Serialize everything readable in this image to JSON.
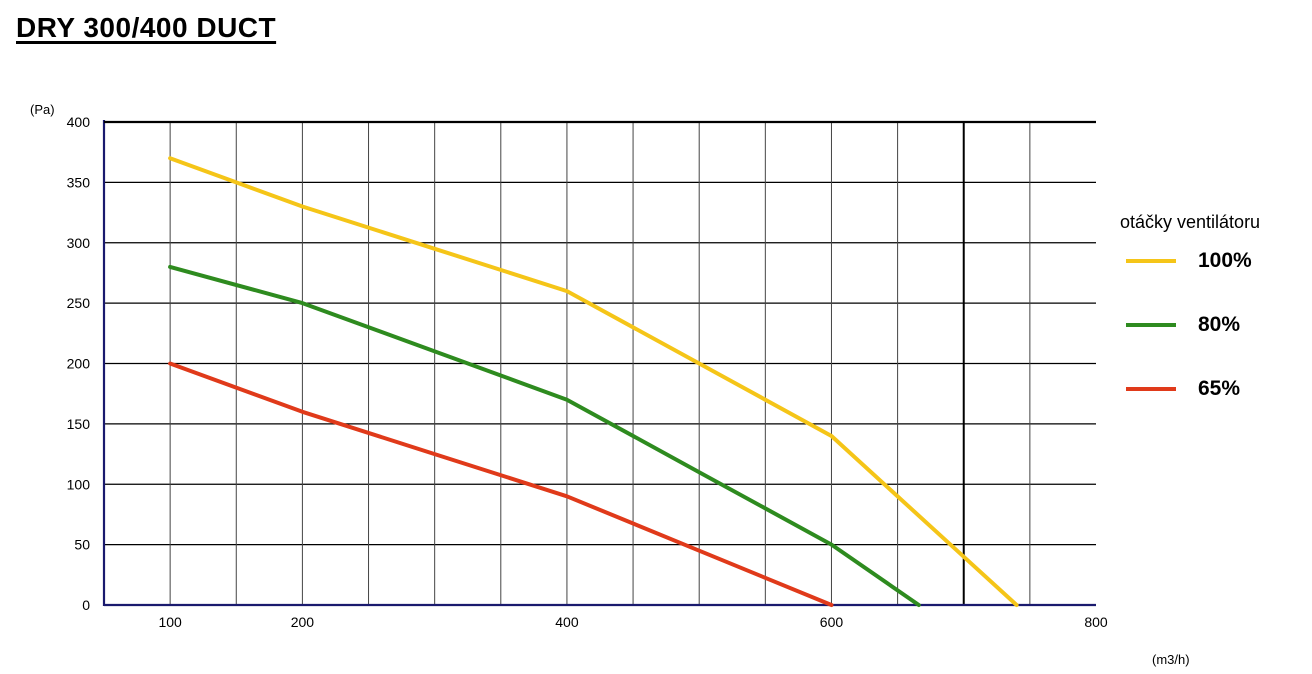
{
  "title": "DRY 300/400 DUCT",
  "chart_data": {
    "type": "line",
    "title": "DRY 300/400 DUCT",
    "ylabel": "(Pa)",
    "xlabel": "(m3/h)",
    "xlim": [
      50,
      800
    ],
    "ylim": [
      0,
      400
    ],
    "x_ticks": [
      100,
      200,
      400,
      600,
      800
    ],
    "y_ticks": [
      0,
      50,
      100,
      150,
      200,
      250,
      300,
      350,
      400
    ],
    "grid": true,
    "legend": {
      "title": "otáčky ventilátoru",
      "position": "right"
    },
    "series": [
      {
        "name": "100%",
        "color": "#f5c518",
        "points": [
          [
            100,
            370
          ],
          [
            150,
            350
          ],
          [
            200,
            330
          ],
          [
            300,
            295
          ],
          [
            400,
            260
          ],
          [
            500,
            200
          ],
          [
            600,
            140
          ],
          [
            700,
            40
          ],
          [
            740,
            0
          ]
        ]
      },
      {
        "name": "80%",
        "color": "#2e8b1f",
        "points": [
          [
            100,
            280
          ],
          [
            200,
            250
          ],
          [
            300,
            210
          ],
          [
            400,
            170
          ],
          [
            500,
            110
          ],
          [
            600,
            50
          ],
          [
            666,
            0
          ]
        ]
      },
      {
        "name": "65%",
        "color": "#e03a1a",
        "points": [
          [
            100,
            200
          ],
          [
            200,
            160
          ],
          [
            300,
            125
          ],
          [
            400,
            90
          ],
          [
            500,
            45
          ],
          [
            600,
            0
          ]
        ]
      }
    ]
  }
}
